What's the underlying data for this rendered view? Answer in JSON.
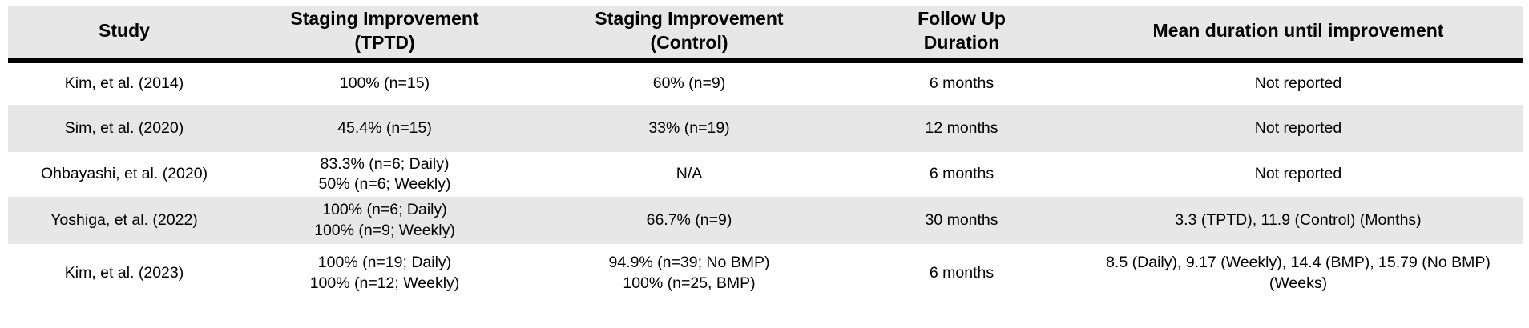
{
  "colors": {
    "header_bg": "#e7e7e7",
    "stripe_bg": "#e7e7e7",
    "rule_color": "#000000",
    "text_color": "#000000"
  },
  "table": {
    "columns": [
      {
        "label": "Study"
      },
      {
        "label": "Staging Improvement\n(TPTD)"
      },
      {
        "label": "Staging Improvement\n(Control)"
      },
      {
        "label": "Follow Up\nDuration"
      },
      {
        "label": "Mean duration until improvement"
      }
    ],
    "rows": [
      {
        "study": "Kim, et al. (2014)",
        "staging_tptd": "100% (n=15)",
        "staging_control": "60% (n=9)",
        "follow_up": "6 months",
        "mean_duration": "Not reported"
      },
      {
        "study": "Sim, et al. (2020)",
        "staging_tptd": "45.4% (n=15)",
        "staging_control": "33% (n=19)",
        "follow_up": "12 months",
        "mean_duration": "Not reported"
      },
      {
        "study": "Ohbayashi, et al. (2020)",
        "staging_tptd": "83.3% (n=6; Daily)\n50% (n=6; Weekly)",
        "staging_control": "N/A",
        "follow_up": "6 months",
        "mean_duration": "Not reported"
      },
      {
        "study": "Yoshiga, et al. (2022)",
        "staging_tptd": "100% (n=6; Daily)\n100% (n=9; Weekly)",
        "staging_control": "66.7% (n=9)",
        "follow_up": "30 months",
        "mean_duration": "3.3 (TPTD), 11.9 (Control) (Months)"
      },
      {
        "study": "Kim, et al. (2023)",
        "staging_tptd": "100% (n=19; Daily)\n100% (n=12; Weekly)",
        "staging_control": "94.9% (n=39; No BMP)\n100% (n=25, BMP)",
        "follow_up": "6 months",
        "mean_duration": "8.5 (Daily), 9.17 (Weekly), 14.4 (BMP), 15.79 (No BMP) (Weeks)"
      }
    ]
  }
}
